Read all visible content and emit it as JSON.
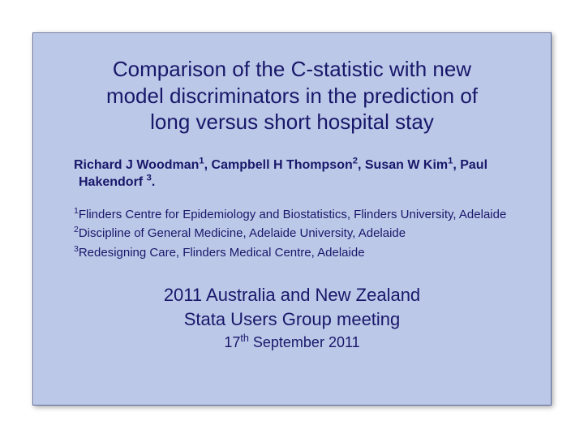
{
  "colors": {
    "slide_bg": "#bcc8e8",
    "text": "#18186a",
    "border": "#5b6a9a",
    "page_bg": "#ffffff"
  },
  "title": {
    "line1": "Comparison of the C-statistic with new",
    "line2": "model discriminators in the prediction of",
    "line3": "long versus short hospital stay"
  },
  "authors": {
    "a1_name": "Richard J Woodman",
    "a1_sup": "1",
    "a2_name": ", Campbell H Thompson",
    "a2_sup": "2",
    "a3_name": ", Susan W Kim",
    "a3_sup": "1",
    "a4_name": ", Paul Hakendorf ",
    "a4_sup": "3",
    "tail": "."
  },
  "affiliations": {
    "r1_sup": "1",
    "r1_text": "Flinders Centre for Epidemiology and Biostatistics, Flinders University, Adelaide",
    "r2_sup": "2",
    "r2_text": "Discipline of General Medicine, Adelaide University, Adelaide",
    "r3_sup": "3",
    "r3_text": "Redesigning Care, Flinders Medical Centre, Adelaide"
  },
  "event": {
    "line1": "2011 Australia and New Zealand",
    "line2": "Stata Users Group meeting",
    "date_pre": "17",
    "date_sup": "th",
    "date_post": " September 2011"
  }
}
